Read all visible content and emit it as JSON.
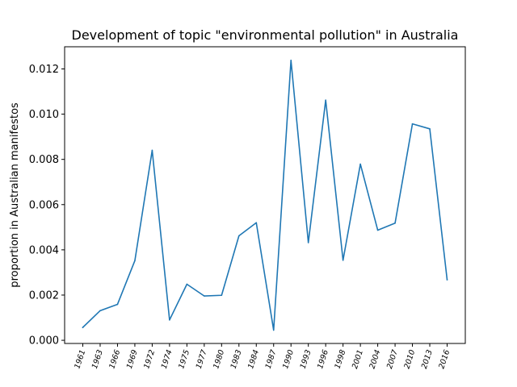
{
  "chart_data": {
    "type": "line",
    "title": "Development of topic \"environmental pollution\" in Australia",
    "xlabel": "",
    "ylabel": "proportion in Australian manifestos",
    "categories": [
      "1961",
      "1963",
      "1966",
      "1969",
      "1972",
      "1974",
      "1975",
      "1977",
      "1980",
      "1983",
      "1984",
      "1987",
      "1990",
      "1993",
      "1996",
      "1998",
      "2001",
      "2004",
      "2007",
      "2010",
      "2013",
      "2016"
    ],
    "series": [
      {
        "color": "#1f77b4",
        "values": [
          0.00057,
          0.00131,
          0.00159,
          0.00352,
          0.0084,
          0.0009,
          0.00248,
          0.00196,
          0.00199,
          0.00462,
          0.0052,
          0.00045,
          0.01238,
          0.00432,
          0.01062,
          0.00354,
          0.00779,
          0.00487,
          0.00518,
          0.00957,
          0.00935,
          0.00268
        ]
      }
    ],
    "yticks": [
      "0.000",
      "0.002",
      "0.004",
      "0.006",
      "0.008",
      "0.010",
      "0.012"
    ],
    "ylim": [
      -0.00014,
      0.01298
    ],
    "grid": false
  }
}
